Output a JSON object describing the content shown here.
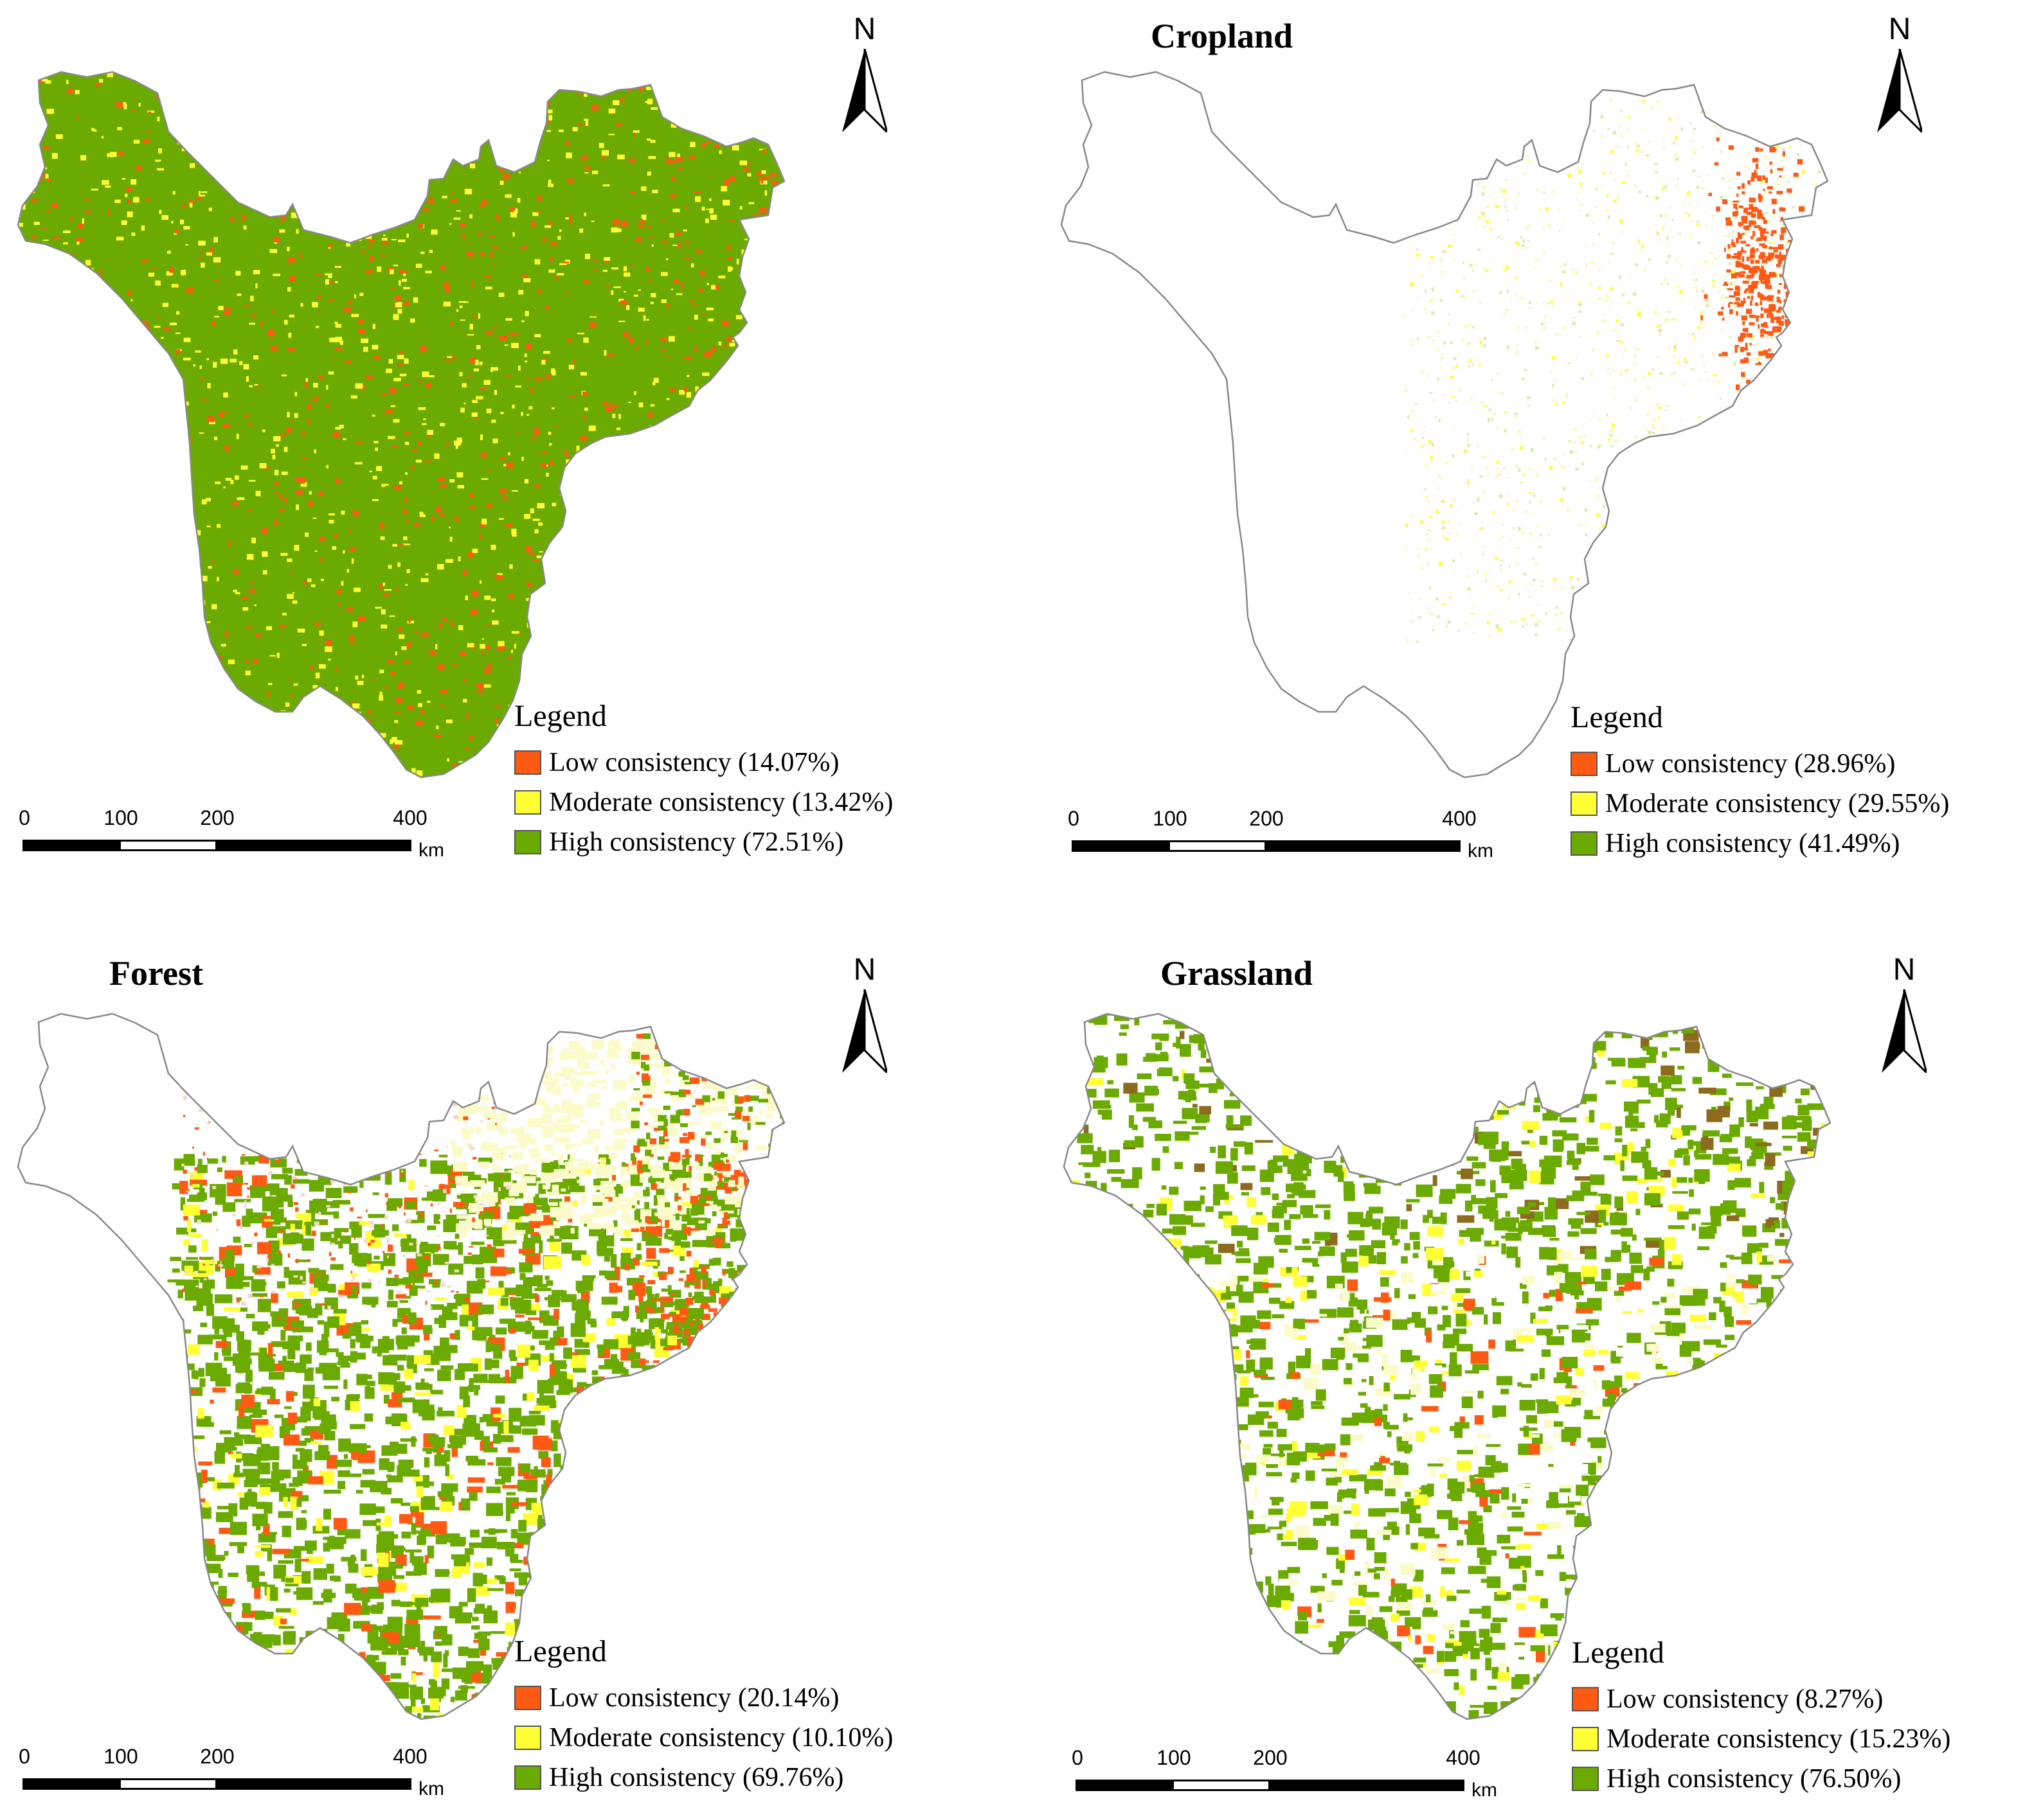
{
  "colors": {
    "low": "#FF5A14",
    "moderate": "#FFFF33",
    "high": "#6BAA00",
    "outline": "#888888",
    "white": "#ffffff"
  },
  "north_label": "N",
  "legend_title": "Legend",
  "scale": {
    "ticks": [
      "0",
      "100",
      "200",
      "400"
    ],
    "unit": "km"
  },
  "panels": [
    {
      "title": "",
      "legend": {
        "low": "Low consistency (14.07%)",
        "moderate": "Moderate consistency (13.42%)",
        "high": "High consistency (72.51%)"
      },
      "shares": {
        "low": 14.07,
        "moderate": 13.42,
        "high": 72.51
      }
    },
    {
      "title": "Cropland",
      "legend": {
        "low": "Low consistency (28.96%)",
        "moderate": "Moderate consistency (29.55%)",
        "high": "High consistency (41.49%)"
      },
      "shares": {
        "low": 28.96,
        "moderate": 29.55,
        "high": 41.49
      }
    },
    {
      "title": "Forest",
      "legend": {
        "low": "Low consistency (20.14%)",
        "moderate": "Moderate consistency (10.10%)",
        "high": "High consistency (69.76%)"
      },
      "shares": {
        "low": 20.14,
        "moderate": 10.1,
        "high": 69.76
      }
    },
    {
      "title": "Grassland",
      "legend": {
        "low": "Low consistency (8.27%)",
        "moderate": "Moderate consistency (15.23%)",
        "high": "High consistency (76.50%)"
      },
      "shares": {
        "low": 8.27,
        "moderate": 15.23,
        "high": 76.5
      }
    }
  ]
}
